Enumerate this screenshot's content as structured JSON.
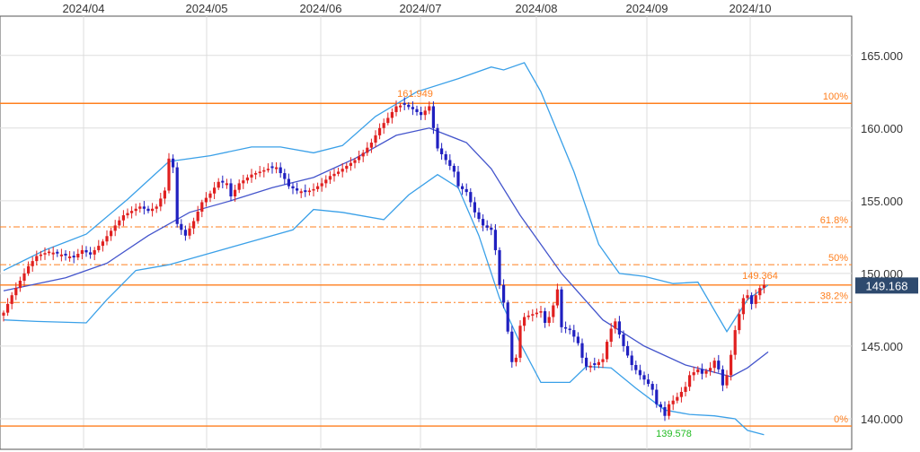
{
  "chart_data": {
    "type": "candlestick",
    "title": "",
    "xlabel": "",
    "ylabel": "",
    "x_ticks": [
      "2024/04",
      "2024/05",
      "2024/06",
      "2024/07",
      "2024/08",
      "2024/09",
      "2024/10"
    ],
    "y_ticks": [
      "165.000",
      "160.000",
      "155.000",
      "150.000",
      "145.000",
      "140.000"
    ],
    "y_tick_values": [
      165,
      160,
      155,
      150,
      145,
      140
    ],
    "ylim": [
      137.9,
      167.7
    ],
    "grid": true,
    "colors": {
      "up": "#e02020",
      "down": "#2020c0",
      "ma": "#4455cc",
      "band": "#3aa0e8",
      "fib": "#ff7f1e",
      "current": "#2e4a6e"
    },
    "current_price": {
      "value": 149.168,
      "label": "149.168"
    },
    "annotations": {
      "high": {
        "value": 161.949,
        "label": "161.949"
      },
      "low": {
        "value": 139.578,
        "label": "139.578"
      },
      "latest_high": {
        "value": 149.364,
        "label": "149.364"
      }
    },
    "fibonacci": [
      {
        "label": "100%",
        "value": 161.7,
        "style": "solid"
      },
      {
        "label": "61.8%",
        "value": 153.2,
        "style": "dashdot"
      },
      {
        "label": "50%",
        "value": 150.6,
        "style": "dashdot"
      },
      {
        "label": "",
        "value": 149.2,
        "style": "solid"
      },
      {
        "label": "38.2%",
        "value": 148.0,
        "style": "dashdot"
      },
      {
        "label": "0%",
        "value": 139.5,
        "style": "solid"
      }
    ],
    "close_path": [
      [
        0,
        147.3
      ],
      [
        2,
        148.5
      ],
      [
        4,
        149.5
      ],
      [
        6,
        150.5
      ],
      [
        8,
        151.2
      ],
      [
        11,
        151.5
      ],
      [
        14,
        151.3
      ],
      [
        17,
        151.1
      ],
      [
        19,
        151.6
      ],
      [
        21,
        151.3
      ],
      [
        24,
        152.2
      ],
      [
        27,
        153.3
      ],
      [
        29,
        154.0
      ],
      [
        31,
        154.3
      ],
      [
        33,
        154.6
      ],
      [
        35,
        154.3
      ],
      [
        37,
        154.6
      ],
      [
        39,
        155.7
      ],
      [
        40,
        157.9
      ],
      [
        41,
        157.3
      ],
      [
        42,
        153.4
      ],
      [
        44,
        152.6
      ],
      [
        46,
        153.6
      ],
      [
        48,
        154.9
      ],
      [
        50,
        155.5
      ],
      [
        52,
        156.3
      ],
      [
        54,
        156.2
      ],
      [
        55,
        155.3
      ],
      [
        57,
        156.2
      ],
      [
        60,
        156.8
      ],
      [
        62,
        157.0
      ],
      [
        64,
        157.2
      ],
      [
        66,
        157.3
      ],
      [
        68,
        156.5
      ],
      [
        69,
        156.0
      ],
      [
        71,
        155.7
      ],
      [
        73,
        155.6
      ],
      [
        75,
        155.8
      ],
      [
        77,
        156.2
      ],
      [
        79,
        156.7
      ],
      [
        81,
        157.0
      ],
      [
        83,
        157.4
      ],
      [
        85,
        157.8
      ],
      [
        87,
        158.3
      ],
      [
        89,
        159.0
      ],
      [
        91,
        160.0
      ],
      [
        93,
        160.7
      ],
      [
        95,
        161.5
      ],
      [
        97,
        161.6
      ],
      [
        99,
        161.3
      ],
      [
        101,
        160.9
      ],
      [
        103,
        161.5
      ],
      [
        104,
        160.0
      ],
      [
        105,
        158.6
      ],
      [
        107,
        157.8
      ],
      [
        109,
        157.0
      ],
      [
        110,
        156.0
      ],
      [
        112,
        155.6
      ],
      [
        114,
        154.2
      ],
      [
        116,
        153.3
      ],
      [
        118,
        153.0
      ],
      [
        119,
        151.6
      ],
      [
        120,
        149.2
      ],
      [
        121,
        148.0
      ],
      [
        122,
        146.0
      ],
      [
        123,
        143.9
      ],
      [
        124,
        144.2
      ],
      [
        125,
        146.4
      ],
      [
        126,
        147.0
      ],
      [
        128,
        147.2
      ],
      [
        130,
        147.4
      ],
      [
        131,
        146.6
      ],
      [
        132,
        147.0
      ],
      [
        133,
        147.8
      ],
      [
        134,
        148.9
      ],
      [
        135,
        146.3
      ],
      [
        137,
        146.1
      ],
      [
        139,
        145.2
      ],
      [
        140,
        144.2
      ],
      [
        141,
        143.6
      ],
      [
        143,
        143.7
      ],
      [
        145,
        144.1
      ],
      [
        146,
        145.3
      ],
      [
        147,
        146.2
      ],
      [
        148,
        146.7
      ],
      [
        149,
        145.8
      ],
      [
        150,
        145.0
      ],
      [
        152,
        143.7
      ],
      [
        154,
        143.0
      ],
      [
        156,
        142.4
      ],
      [
        157,
        142.0
      ],
      [
        158,
        141.0
      ],
      [
        159,
        140.8
      ],
      [
        160,
        140.2
      ],
      [
        161,
        141.0
      ],
      [
        163,
        141.5
      ],
      [
        165,
        142.2
      ],
      [
        166,
        143.0
      ],
      [
        168,
        143.4
      ],
      [
        169,
        143.1
      ],
      [
        171,
        143.5
      ],
      [
        172,
        144.0
      ],
      [
        173,
        143.4
      ],
      [
        174,
        142.3
      ],
      [
        175,
        143.0
      ],
      [
        176,
        144.4
      ],
      [
        177,
        146.1
      ],
      [
        178,
        147.2
      ],
      [
        179,
        148.3
      ],
      [
        180,
        148.5
      ],
      [
        181,
        147.9
      ],
      [
        182,
        148.5
      ],
      [
        183,
        149.0
      ],
      [
        184,
        149.2
      ]
    ],
    "ma_path": [
      [
        0,
        148.8
      ],
      [
        15,
        149.7
      ],
      [
        25,
        150.7
      ],
      [
        35,
        152.6
      ],
      [
        45,
        154.2
      ],
      [
        55,
        155.0
      ],
      [
        65,
        155.9
      ],
      [
        75,
        156.6
      ],
      [
        85,
        157.9
      ],
      [
        95,
        159.5
      ],
      [
        103,
        160.0
      ],
      [
        112,
        159.0
      ],
      [
        118,
        157.2
      ],
      [
        125,
        154.0
      ],
      [
        135,
        150.0
      ],
      [
        145,
        146.8
      ],
      [
        155,
        145.0
      ],
      [
        165,
        143.7
      ],
      [
        172,
        143.2
      ],
      [
        176,
        142.9
      ],
      [
        180,
        143.5
      ],
      [
        185,
        144.6
      ]
    ],
    "upper_band_path": [
      [
        0,
        150.2
      ],
      [
        10,
        151.6
      ],
      [
        20,
        152.7
      ],
      [
        30,
        155.1
      ],
      [
        40,
        157.7
      ],
      [
        50,
        158.1
      ],
      [
        60,
        158.7
      ],
      [
        67,
        158.7
      ],
      [
        75,
        158.3
      ],
      [
        82,
        158.8
      ],
      [
        90,
        160.8
      ],
      [
        100,
        162.5
      ],
      [
        110,
        163.4
      ],
      [
        118,
        164.2
      ],
      [
        121,
        164.0
      ],
      [
        126,
        164.5
      ],
      [
        130,
        162.5
      ],
      [
        138,
        157.0
      ],
      [
        144,
        152.0
      ],
      [
        149,
        150.0
      ],
      [
        155,
        149.8
      ],
      [
        162,
        149.3
      ],
      [
        168,
        149.4
      ],
      [
        175,
        146.0
      ],
      [
        180,
        148.2
      ],
      [
        185,
        149.2
      ]
    ],
    "lower_band_path": [
      [
        0,
        146.8
      ],
      [
        8,
        146.7
      ],
      [
        20,
        146.6
      ],
      [
        25,
        148.2
      ],
      [
        32,
        150.2
      ],
      [
        40,
        150.6
      ],
      [
        50,
        151.4
      ],
      [
        60,
        152.2
      ],
      [
        70,
        153.0
      ],
      [
        75,
        154.4
      ],
      [
        82,
        154.2
      ],
      [
        92,
        153.7
      ],
      [
        98,
        155.4
      ],
      [
        105,
        156.8
      ],
      [
        110,
        155.9
      ],
      [
        115,
        152.6
      ],
      [
        120,
        148.3
      ],
      [
        125,
        145.2
      ],
      [
        130,
        142.5
      ],
      [
        137,
        142.5
      ],
      [
        141,
        143.6
      ],
      [
        147,
        143.5
      ],
      [
        153,
        142.1
      ],
      [
        160,
        140.6
      ],
      [
        166,
        140.3
      ],
      [
        172,
        140.2
      ],
      [
        177,
        140.0
      ],
      [
        180,
        139.2
      ],
      [
        184,
        138.9
      ]
    ]
  }
}
